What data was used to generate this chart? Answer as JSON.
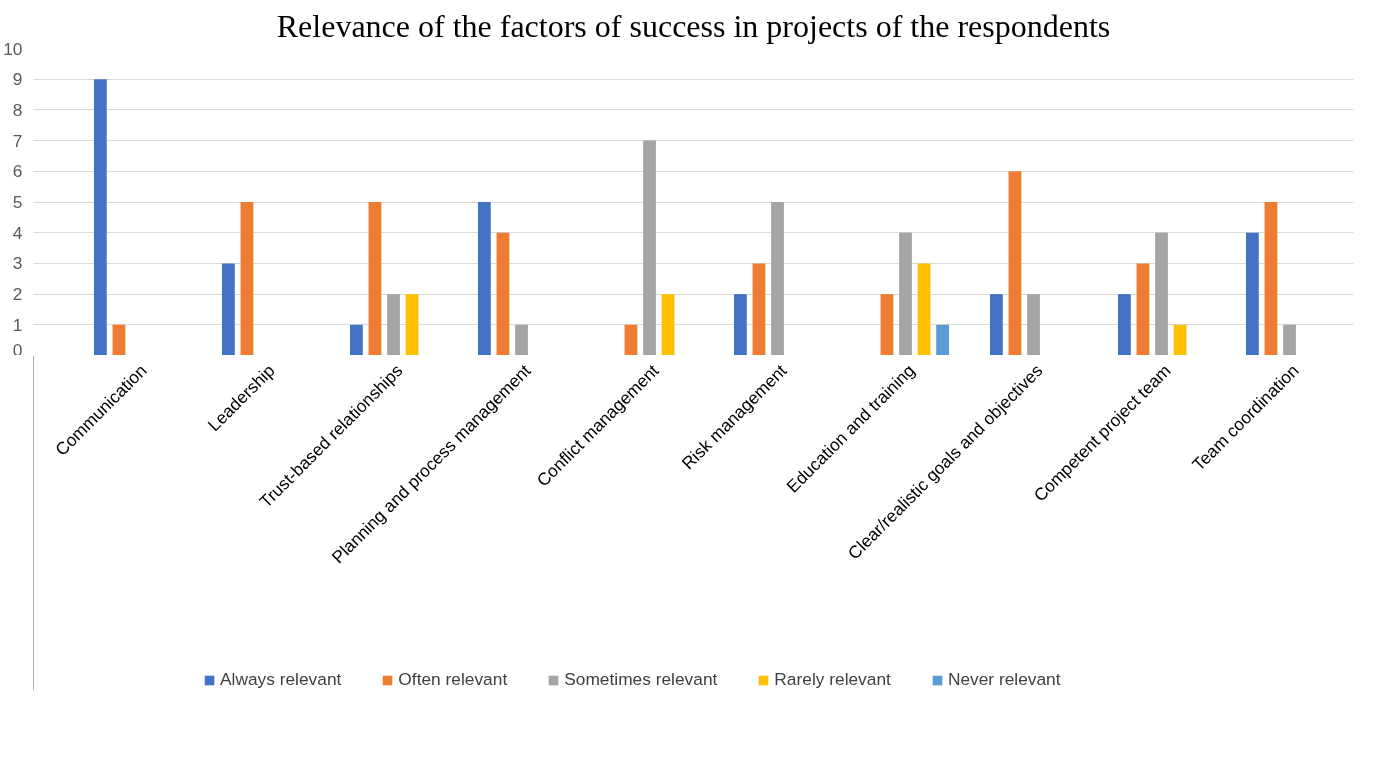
{
  "chart_data": {
    "type": "bar",
    "title": "Relevance of the factors of success in projects of the respondents",
    "categories": [
      "Communication",
      "Leadership",
      "Trust-based relationships",
      "Planning and process management",
      "Conflict management",
      "Risk management",
      "Education and training",
      "Clear/realistic goals and objectives",
      "Competent project team",
      "Team coordination"
    ],
    "series": [
      {
        "name": "Always relevant",
        "color": "#4472c4",
        "values": [
          9,
          3,
          1,
          5,
          0,
          2,
          0,
          2,
          2,
          4
        ]
      },
      {
        "name": "Often relevant",
        "color": "#ed7d31",
        "values": [
          1,
          5,
          5,
          4,
          1,
          3,
          2,
          6,
          3,
          5
        ]
      },
      {
        "name": "Sometimes relevant",
        "color": "#a5a5a5",
        "values": [
          0,
          0,
          2,
          1,
          7,
          5,
          4,
          2,
          4,
          1
        ]
      },
      {
        "name": "Rarely relevant",
        "color": "#ffc000",
        "values": [
          0,
          0,
          2,
          0,
          2,
          0,
          3,
          0,
          1,
          0
        ]
      },
      {
        "name": "Never relevant",
        "color": "#5b9bd5",
        "values": [
          0,
          0,
          0,
          0,
          0,
          0,
          1,
          0,
          0,
          0
        ]
      }
    ],
    "ylim": [
      0,
      10
    ],
    "yticks": [
      0,
      1,
      2,
      3,
      4,
      5,
      6,
      7,
      8,
      9,
      10
    ],
    "grid": "y",
    "legend": "bottom"
  }
}
